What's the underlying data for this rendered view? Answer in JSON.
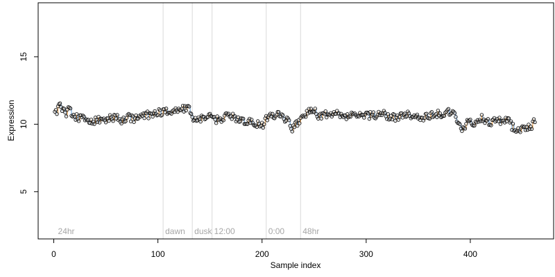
{
  "chart_data": {
    "type": "scatter",
    "title": "",
    "xlabel": "Sample index",
    "ylabel": "Expression",
    "xlim": [
      -15,
      480
    ],
    "ylim": [
      1.5,
      19
    ],
    "xticks": [
      0,
      100,
      200,
      300,
      400
    ],
    "yticks": [
      5,
      10,
      15
    ],
    "grid": false,
    "legend": "none",
    "colors": {
      "point_outline": "#000000",
      "segment_up": "#f4a347",
      "segment_down": "#6a9fd4",
      "event_line": "#d9d9d9",
      "event_text": "#a6a6a6"
    },
    "events": [
      {
        "x": 2,
        "label": "24hr",
        "line": false
      },
      {
        "x": 105,
        "label": "dawn",
        "line": true
      },
      {
        "x": 133,
        "label": "dusk",
        "line": true
      },
      {
        "x": 152,
        "label": "12:00",
        "line": true
      },
      {
        "x": 204,
        "label": "0:00",
        "line": true
      },
      {
        "x": 237,
        "label": "48hr",
        "line": true
      }
    ],
    "anchors": [
      [
        1,
        11.1
      ],
      [
        3,
        11.0
      ],
      [
        6,
        11.4
      ],
      [
        8,
        10.9
      ],
      [
        10,
        11.3
      ],
      [
        12,
        10.8
      ],
      [
        15,
        11.2
      ],
      [
        18,
        10.6
      ],
      [
        22,
        10.5
      ],
      [
        27,
        10.4
      ],
      [
        32,
        10.3
      ],
      [
        38,
        10.2
      ],
      [
        44,
        10.3
      ],
      [
        50,
        10.4
      ],
      [
        56,
        10.5
      ],
      [
        62,
        10.4
      ],
      [
        68,
        10.2
      ],
      [
        72,
        10.5
      ],
      [
        78,
        10.4
      ],
      [
        85,
        10.6
      ],
      [
        92,
        10.7
      ],
      [
        100,
        10.9
      ],
      [
        106,
        10.9
      ],
      [
        113,
        11.0
      ],
      [
        120,
        11.1
      ],
      [
        126,
        11.2
      ],
      [
        131,
        11.1
      ],
      [
        134,
        10.5
      ],
      [
        137,
        10.3
      ],
      [
        142,
        10.5
      ],
      [
        148,
        10.6
      ],
      [
        152,
        10.4
      ],
      [
        156,
        10.3
      ],
      [
        160,
        10.4
      ],
      [
        164,
        10.6
      ],
      [
        168,
        10.7
      ],
      [
        173,
        10.5
      ],
      [
        178,
        10.3
      ],
      [
        184,
        10.2
      ],
      [
        190,
        10.1
      ],
      [
        196,
        10.0
      ],
      [
        201,
        9.8
      ],
      [
        204,
        10.5
      ],
      [
        208,
        10.6
      ],
      [
        213,
        10.7
      ],
      [
        218,
        10.8
      ],
      [
        222,
        10.4
      ],
      [
        226,
        10.2
      ],
      [
        229,
        9.7
      ],
      [
        232,
        9.9
      ],
      [
        236,
        10.3
      ],
      [
        240,
        10.6
      ],
      [
        245,
        10.9
      ],
      [
        250,
        11.0
      ],
      [
        255,
        10.6
      ],
      [
        260,
        10.8
      ],
      [
        266,
        10.6
      ],
      [
        272,
        10.8
      ],
      [
        278,
        10.5
      ],
      [
        285,
        10.7
      ],
      [
        292,
        10.6
      ],
      [
        300,
        10.7
      ],
      [
        308,
        10.6
      ],
      [
        315,
        10.8
      ],
      [
        322,
        10.6
      ],
      [
        330,
        10.5
      ],
      [
        338,
        10.7
      ],
      [
        345,
        10.6
      ],
      [
        352,
        10.5
      ],
      [
        360,
        10.6
      ],
      [
        367,
        10.8
      ],
      [
        374,
        10.7
      ],
      [
        380,
        10.9
      ],
      [
        385,
        10.6
      ],
      [
        389,
        10.0
      ],
      [
        392,
        9.6
      ],
      [
        395,
        9.9
      ],
      [
        398,
        10.3
      ],
      [
        402,
        9.9
      ],
      [
        406,
        10.2
      ],
      [
        412,
        10.5
      ],
      [
        418,
        10.1
      ],
      [
        424,
        10.3
      ],
      [
        430,
        10.2
      ],
      [
        436,
        10.5
      ],
      [
        440,
        9.8
      ],
      [
        445,
        9.6
      ],
      [
        450,
        9.7
      ],
      [
        455,
        9.8
      ],
      [
        459,
        9.9
      ],
      [
        462,
        10.2
      ]
    ]
  }
}
